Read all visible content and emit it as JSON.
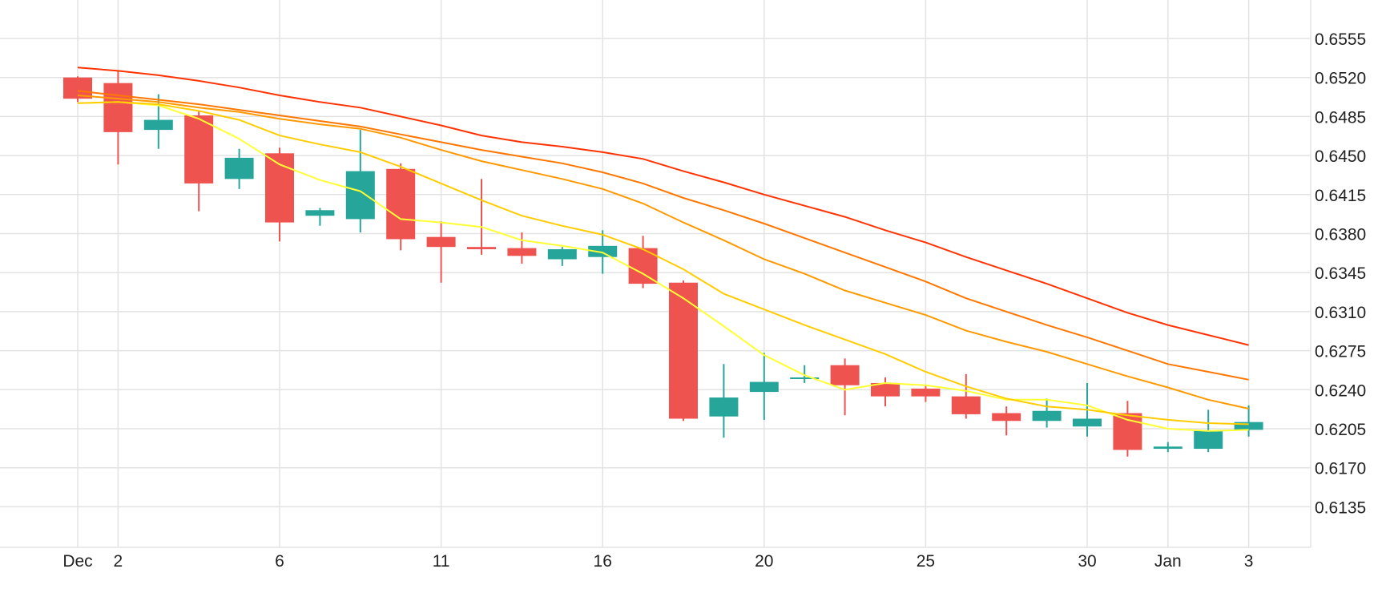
{
  "chart_data": {
    "type": "candlestick",
    "title": "",
    "xlabel": "",
    "ylabel": "",
    "ylim": [
      0.61,
      0.66
    ],
    "y_ticks": [
      "0.6555",
      "0.6520",
      "0.6485",
      "0.6450",
      "0.6415",
      "0.6380",
      "0.6345",
      "0.6310",
      "0.6275",
      "0.6240",
      "0.6205",
      "0.6170",
      "0.6135"
    ],
    "x_tick_labels": [
      {
        "idx": 0,
        "label": "Dec"
      },
      {
        "idx": 1,
        "label": "2"
      },
      {
        "idx": 5,
        "label": "6"
      },
      {
        "idx": 9,
        "label": "11"
      },
      {
        "idx": 13,
        "label": "16"
      },
      {
        "idx": 17,
        "label": "20"
      },
      {
        "idx": 21,
        "label": "25"
      },
      {
        "idx": 25,
        "label": "30"
      },
      {
        "idx": 27,
        "label": "Jan"
      },
      {
        "idx": 29,
        "label": "3"
      }
    ],
    "grid": true,
    "colors": {
      "up": "#26a69a",
      "down": "#ef5350",
      "grid": "#e3e3e3",
      "ma_colors": [
        "#ffff33",
        "#ffcc00",
        "#ff9900",
        "#ff7700",
        "#ff3300"
      ]
    },
    "candles": [
      {
        "o": 0.652,
        "h": 0.6521,
        "l": 0.6498,
        "c": 0.6501
      },
      {
        "o": 0.6515,
        "h": 0.6526,
        "l": 0.6442,
        "c": 0.6471
      },
      {
        "o": 0.6473,
        "h": 0.6505,
        "l": 0.6456,
        "c": 0.6482
      },
      {
        "o": 0.6486,
        "h": 0.649,
        "l": 0.64,
        "c": 0.6425
      },
      {
        "o": 0.6429,
        "h": 0.6456,
        "l": 0.642,
        "c": 0.6448
      },
      {
        "o": 0.6452,
        "h": 0.6457,
        "l": 0.6373,
        "c": 0.639
      },
      {
        "o": 0.6396,
        "h": 0.6403,
        "l": 0.6387,
        "c": 0.6401
      },
      {
        "o": 0.6393,
        "h": 0.6473,
        "l": 0.6381,
        "c": 0.6436
      },
      {
        "o": 0.6438,
        "h": 0.6443,
        "l": 0.6365,
        "c": 0.6375
      },
      {
        "o": 0.6377,
        "h": 0.6391,
        "l": 0.6336,
        "c": 0.6368
      },
      {
        "o": 0.6368,
        "h": 0.6429,
        "l": 0.6361,
        "c": 0.6366
      },
      {
        "o": 0.6367,
        "h": 0.6381,
        "l": 0.6353,
        "c": 0.636
      },
      {
        "o": 0.6357,
        "h": 0.6368,
        "l": 0.6351,
        "c": 0.6366
      },
      {
        "o": 0.6359,
        "h": 0.6383,
        "l": 0.6344,
        "c": 0.6369
      },
      {
        "o": 0.6367,
        "h": 0.6378,
        "l": 0.6331,
        "c": 0.6335
      },
      {
        "o": 0.6336,
        "h": 0.6338,
        "l": 0.6212,
        "c": 0.6214
      },
      {
        "o": 0.6216,
        "h": 0.6263,
        "l": 0.6197,
        "c": 0.6233
      },
      {
        "o": 0.6238,
        "h": 0.6273,
        "l": 0.6213,
        "c": 0.6247
      },
      {
        "o": 0.625,
        "h": 0.6262,
        "l": 0.6246,
        "c": 0.6251
      },
      {
        "o": 0.6262,
        "h": 0.6268,
        "l": 0.6217,
        "c": 0.6244
      },
      {
        "o": 0.6246,
        "h": 0.6251,
        "l": 0.6225,
        "c": 0.6234
      },
      {
        "o": 0.6241,
        "h": 0.6244,
        "l": 0.6229,
        "c": 0.6234
      },
      {
        "o": 0.6234,
        "h": 0.6254,
        "l": 0.6214,
        "c": 0.6218
      },
      {
        "o": 0.6219,
        "h": 0.6225,
        "l": 0.6199,
        "c": 0.6212
      },
      {
        "o": 0.6212,
        "h": 0.6232,
        "l": 0.6206,
        "c": 0.6221
      },
      {
        "o": 0.6207,
        "h": 0.6246,
        "l": 0.6198,
        "c": 0.6214
      },
      {
        "o": 0.6219,
        "h": 0.623,
        "l": 0.618,
        "c": 0.6186
      },
      {
        "o": 0.6187,
        "h": 0.6193,
        "l": 0.6184,
        "c": 0.6189
      },
      {
        "o": 0.6187,
        "h": 0.6222,
        "l": 0.6184,
        "c": 0.6203
      },
      {
        "o": 0.6204,
        "h": 0.6226,
        "l": 0.6198,
        "c": 0.6211
      }
    ],
    "moving_averages": [
      {
        "color": "#ffff33",
        "values": [
          0.6497,
          0.6498,
          0.6495,
          0.6483,
          0.6465,
          0.6442,
          0.6428,
          0.6418,
          0.6393,
          0.639,
          0.6386,
          0.6374,
          0.6369,
          0.6363,
          0.6344,
          0.6322,
          0.6297,
          0.6271,
          0.6253,
          0.624,
          0.6246,
          0.6244,
          0.6239,
          0.6231,
          0.6231,
          0.6226,
          0.6213,
          0.6205,
          0.6203,
          0.6204
        ]
      },
      {
        "color": "#ffcc00",
        "values": [
          0.6497,
          0.6498,
          0.6496,
          0.649,
          0.6482,
          0.6468,
          0.646,
          0.6453,
          0.644,
          0.6425,
          0.641,
          0.6396,
          0.6387,
          0.6379,
          0.6366,
          0.6348,
          0.6326,
          0.6312,
          0.6298,
          0.6285,
          0.6272,
          0.6256,
          0.6243,
          0.6232,
          0.6225,
          0.6222,
          0.6217,
          0.6213,
          0.621,
          0.6209
        ]
      },
      {
        "color": "#ff9900",
        "values": [
          0.6504,
          0.6501,
          0.6498,
          0.6493,
          0.6489,
          0.6483,
          0.6478,
          0.6474,
          0.6466,
          0.6455,
          0.6445,
          0.6437,
          0.6429,
          0.642,
          0.6407,
          0.639,
          0.6374,
          0.6357,
          0.6344,
          0.6329,
          0.6318,
          0.6307,
          0.6293,
          0.6283,
          0.6274,
          0.6263,
          0.6252,
          0.6242,
          0.6231,
          0.6223
        ]
      },
      {
        "color": "#ff7700",
        "values": [
          0.6508,
          0.6504,
          0.65,
          0.6496,
          0.6491,
          0.6486,
          0.6481,
          0.6476,
          0.6469,
          0.6462,
          0.6455,
          0.6449,
          0.6443,
          0.6435,
          0.6425,
          0.6412,
          0.6401,
          0.6389,
          0.6376,
          0.6363,
          0.635,
          0.6337,
          0.6322,
          0.631,
          0.6298,
          0.6287,
          0.6275,
          0.6263,
          0.6256,
          0.6249
        ]
      },
      {
        "color": "#ff3300",
        "values": [
          0.6529,
          0.6526,
          0.6522,
          0.6517,
          0.6511,
          0.6504,
          0.6498,
          0.6493,
          0.6485,
          0.6477,
          0.6468,
          0.6462,
          0.6458,
          0.6453,
          0.6447,
          0.6436,
          0.6426,
          0.6415,
          0.6405,
          0.6395,
          0.6383,
          0.6372,
          0.6359,
          0.6347,
          0.6335,
          0.6322,
          0.6309,
          0.6298,
          0.6289,
          0.628
        ]
      }
    ]
  }
}
